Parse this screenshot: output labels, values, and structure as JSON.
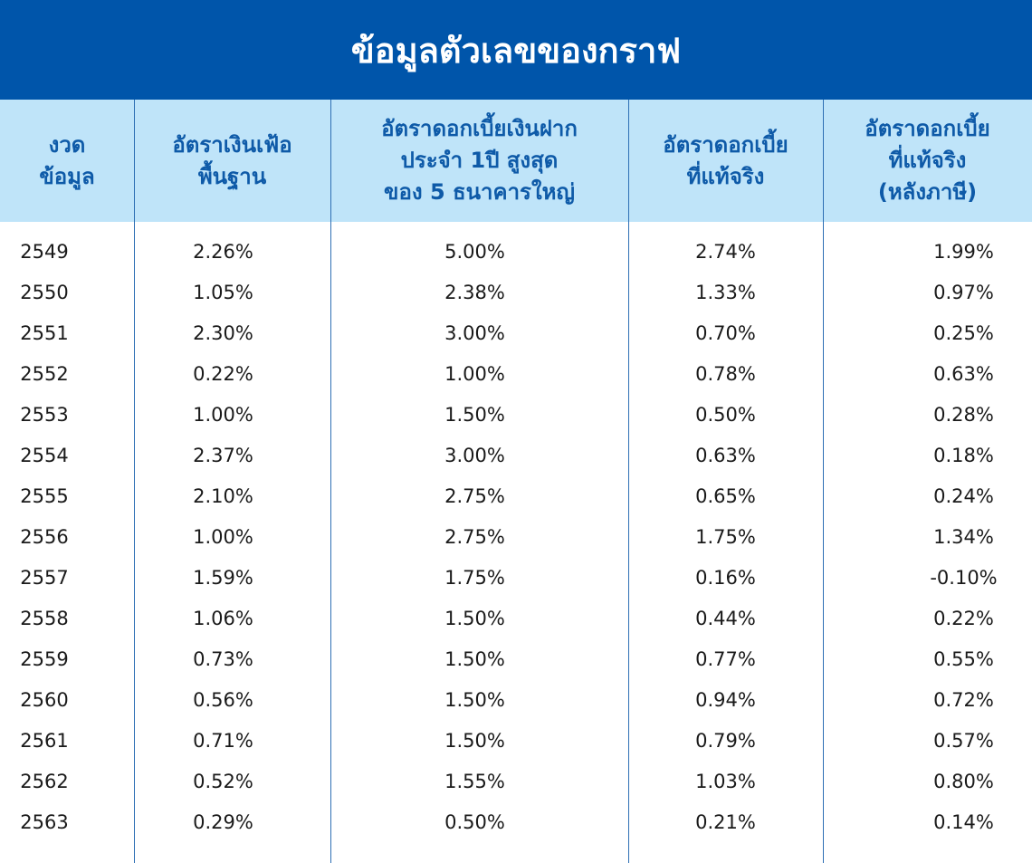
{
  "title": "ข้อมูลตัวเลขของกราฟ",
  "colors": {
    "title_bg": "#0055aa",
    "header_bg": "#bfe4f9",
    "header_text": "#0e5aa8",
    "divider": "#2e6fb4"
  },
  "chart_data": {
    "type": "table",
    "title": "ข้อมูลตัวเลขของกราฟ",
    "columns": [
      "งวด\nข้อมูล",
      "อัตราเงินเฟ้อ\nพื้นฐาน",
      "อัตราดอกเบี้ยเงินฝาก\nประจำ 1ปี สูงสุด\nของ 5 ธนาคารใหญ่",
      "อัตราดอกเบี้ย\nที่แท้จริง",
      "อัตราดอกเบี้ย\nที่แท้จริง\n(หลังภาษี)"
    ],
    "rows": [
      [
        "2549",
        "2.26%",
        "5.00%",
        "2.74%",
        "1.99%"
      ],
      [
        "2550",
        "1.05%",
        "2.38%",
        "1.33%",
        "0.97%"
      ],
      [
        "2551",
        "2.30%",
        "3.00%",
        "0.70%",
        "0.25%"
      ],
      [
        "2552",
        "0.22%",
        "1.00%",
        "0.78%",
        "0.63%"
      ],
      [
        "2553",
        "1.00%",
        "1.50%",
        "0.50%",
        "0.28%"
      ],
      [
        "2554",
        "2.37%",
        "3.00%",
        "0.63%",
        "0.18%"
      ],
      [
        "2555",
        "2.10%",
        "2.75%",
        "0.65%",
        "0.24%"
      ],
      [
        "2556",
        "1.00%",
        "2.75%",
        "1.75%",
        "1.34%"
      ],
      [
        "2557",
        "1.59%",
        "1.75%",
        "0.16%",
        "-0.10%"
      ],
      [
        "2558",
        "1.06%",
        "1.50%",
        "0.44%",
        "0.22%"
      ],
      [
        "2559",
        "0.73%",
        "1.50%",
        "0.77%",
        "0.55%"
      ],
      [
        "2560",
        "0.56%",
        "1.50%",
        "0.94%",
        "0.72%"
      ],
      [
        "2561",
        "0.71%",
        "1.50%",
        "0.79%",
        "0.57%"
      ],
      [
        "2562",
        "0.52%",
        "1.55%",
        "1.03%",
        "0.80%"
      ],
      [
        "2563",
        "0.29%",
        "0.50%",
        "0.21%",
        "0.14%"
      ]
    ]
  }
}
